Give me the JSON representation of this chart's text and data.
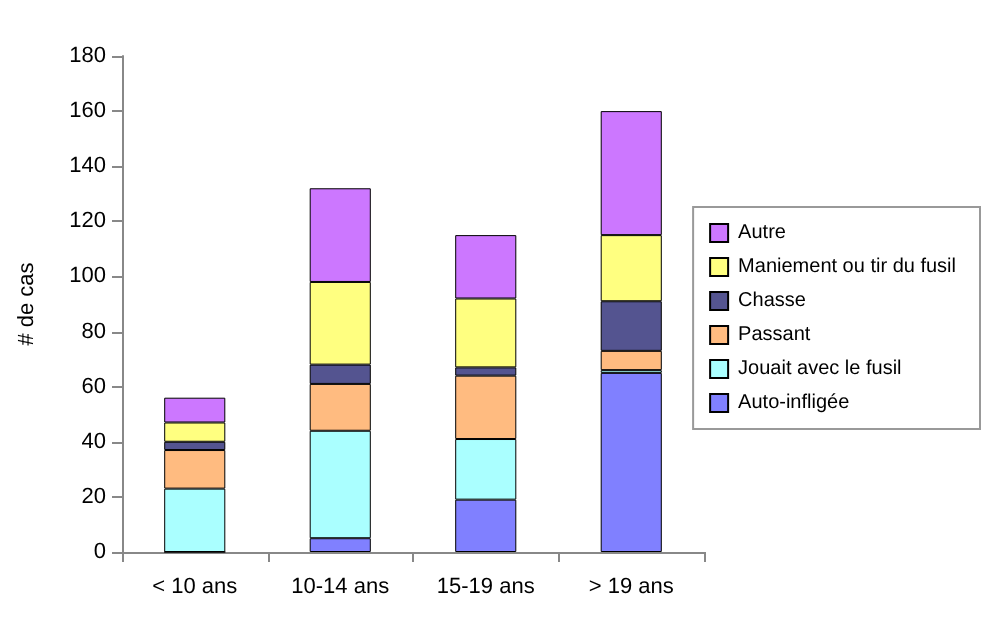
{
  "chart_data": {
    "type": "bar",
    "stacked": true,
    "ylabel": "# de cas",
    "categories": [
      "< 10 ans",
      "10-14 ans",
      "15-19 ans",
      "> 19 ans"
    ],
    "ylim": [
      0,
      180
    ],
    "yticks": [
      0,
      20,
      40,
      60,
      80,
      100,
      120,
      140,
      160,
      180
    ],
    "grid": false,
    "legend": "right",
    "series": [
      {
        "name": "Auto-infligée",
        "color": "#8080ff",
        "values": [
          0,
          5,
          19,
          65
        ]
      },
      {
        "name": "Jouait avec le fusil",
        "color": "#aaffff",
        "values": [
          23,
          39,
          22,
          1
        ]
      },
      {
        "name": "Passant",
        "color": "#ffbb80",
        "values": [
          14,
          17,
          23,
          7
        ]
      },
      {
        "name": "Chasse",
        "color": "#545490",
        "values": [
          3,
          7,
          3,
          18
        ]
      },
      {
        "name": "Maniement ou tir du fusil",
        "color": "#ffff80",
        "values": [
          7,
          30,
          25,
          24
        ]
      },
      {
        "name": "Autre",
        "color": "#cc77ff",
        "values": [
          9,
          34,
          23,
          45
        ]
      }
    ]
  }
}
